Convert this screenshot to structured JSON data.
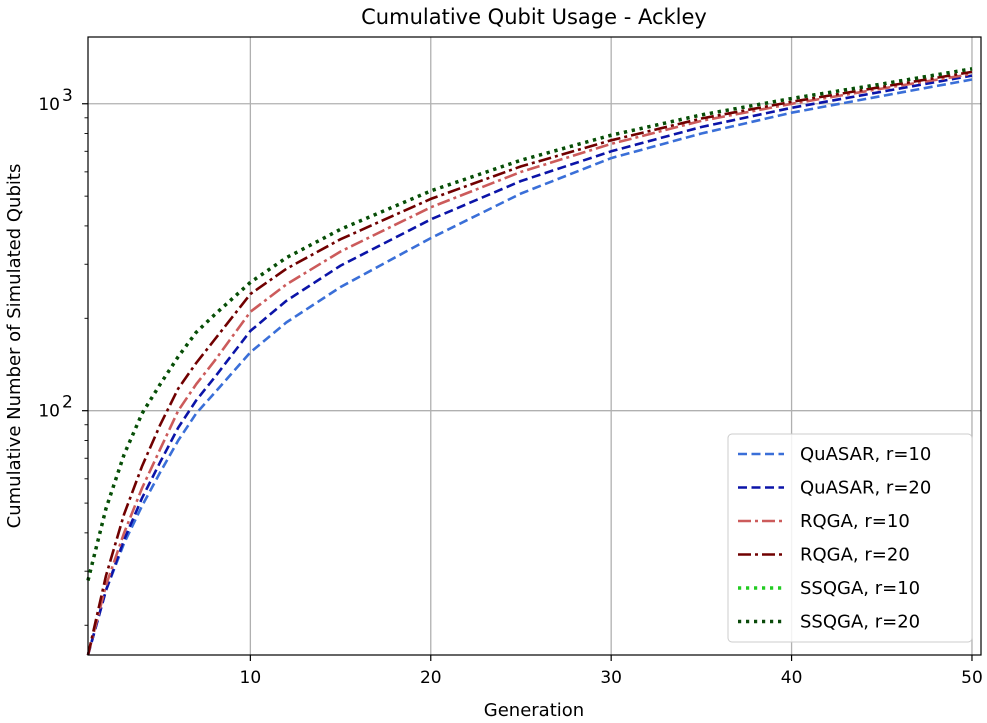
{
  "chart_data": {
    "type": "line",
    "title": "Cumulative Qubit Usage - Ackley",
    "xlabel": "Generation",
    "ylabel": "Cumulative Number of Simulated Qubits",
    "xlim": [
      1,
      50.5
    ],
    "ylim": [
      16,
      1650
    ],
    "yscale": "log",
    "xticks": [
      10,
      20,
      30,
      40,
      50
    ],
    "yticks": [
      {
        "value": 100,
        "base": "10",
        "exp": "2"
      },
      {
        "value": 1000,
        "base": "10",
        "exp": "3"
      }
    ],
    "grid": true,
    "legend_position": "lower-right",
    "series": [
      {
        "name": "QuASAR, r=10",
        "color": "#3a6fd8",
        "dash": "dashed",
        "width": 2.6,
        "x": [
          1,
          2,
          3,
          4,
          5,
          6,
          7,
          8,
          10,
          12,
          15,
          20,
          25,
          30,
          35,
          40,
          45,
          50
        ],
        "y": [
          16,
          26,
          37,
          49,
          63,
          80,
          98,
          114,
          155,
          194,
          253,
          365,
          510,
          665,
          800,
          935,
          1060,
          1200
        ]
      },
      {
        "name": "QuASAR, r=20",
        "color": "#0b14a8",
        "dash": "dashed",
        "width": 2.6,
        "x": [
          1,
          2,
          3,
          4,
          5,
          6,
          7,
          8,
          10,
          12,
          15,
          20,
          25,
          30,
          35,
          40,
          45,
          50
        ],
        "y": [
          16,
          26,
          38,
          52,
          68,
          88,
          108,
          128,
          182,
          228,
          297,
          420,
          560,
          700,
          840,
          970,
          1095,
          1235
        ]
      },
      {
        "name": "RQGA, r=10",
        "color": "#cc5b5b",
        "dash": "dashdot",
        "width": 2.6,
        "x": [
          1,
          2,
          3,
          4,
          5,
          6,
          7,
          8,
          10,
          12,
          15,
          20,
          25,
          30,
          35,
          40,
          45,
          50
        ],
        "y": [
          16,
          27,
          40,
          56,
          75,
          100,
          122,
          145,
          210,
          258,
          330,
          460,
          600,
          740,
          880,
          1000,
          1120,
          1250
        ]
      },
      {
        "name": "RQGA, r=20",
        "color": "#700000",
        "dash": "dashdot",
        "width": 2.6,
        "x": [
          1,
          2,
          3,
          4,
          5,
          6,
          7,
          8,
          10,
          12,
          15,
          20,
          25,
          30,
          35,
          40,
          45,
          50
        ],
        "y": [
          16,
          29,
          46,
          66,
          90,
          118,
          143,
          170,
          240,
          290,
          362,
          490,
          625,
          760,
          895,
          1015,
          1135,
          1270
        ]
      },
      {
        "name": "SSQGA, r=10",
        "color": "#22cc22",
        "dash": "dotted",
        "width": 3.4,
        "x": [
          1,
          2,
          3,
          4,
          5,
          6,
          7,
          8,
          10,
          12,
          15,
          20,
          25,
          30,
          35,
          40,
          45,
          50
        ],
        "y": [
          28,
          48,
          72,
          98,
          122,
          150,
          180,
          205,
          262,
          315,
          390,
          520,
          655,
          790,
          920,
          1040,
          1160,
          1300
        ]
      },
      {
        "name": "SSQGA, r=20",
        "color": "#0a4a0a",
        "dash": "dotted",
        "width": 3.4,
        "x": [
          1,
          2,
          3,
          4,
          5,
          6,
          7,
          8,
          10,
          12,
          15,
          20,
          25,
          30,
          35,
          40,
          45,
          50
        ],
        "y": [
          28,
          48,
          72,
          98,
          122,
          150,
          180,
          205,
          262,
          315,
          390,
          520,
          655,
          790,
          920,
          1040,
          1160,
          1300
        ]
      }
    ]
  }
}
